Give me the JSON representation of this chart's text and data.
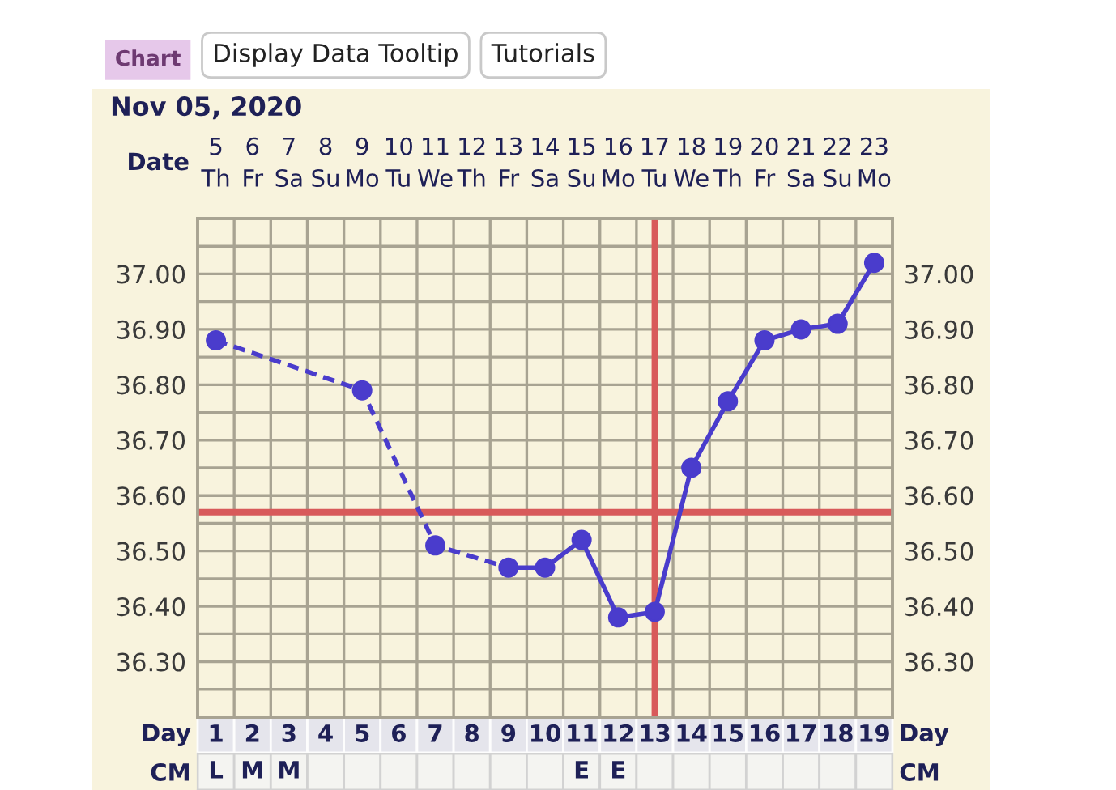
{
  "chart_data": [
    {
      "type": "line",
      "title": "Nov 05, 2020",
      "xlabel": "Day",
      "x2label": "Date",
      "x": [
        1,
        2,
        3,
        4,
        5,
        6,
        7,
        8,
        9,
        10,
        11,
        12,
        13,
        14,
        15,
        16,
        17,
        18,
        19
      ],
      "series": [
        {
          "x": [
            1,
            5,
            7,
            9
          ],
          "values": [
            36.88,
            36.79,
            36.51,
            36.47
          ],
          "color": "#4a3ccc",
          "line_style": "dashed",
          "marker": "none"
        },
        {
          "values": [
            36.88,
            null,
            null,
            null,
            36.79,
            null,
            36.51,
            null,
            36.47,
            36.47,
            36.52,
            36.38,
            36.39,
            36.65,
            36.77,
            36.88,
            36.9,
            36.91,
            37.02
          ],
          "color": "#4a3ccc",
          "line_style": "solid",
          "marker": "circle"
        }
      ],
      "xlim": [
        0.5,
        19.5
      ],
      "xticks": [
        1,
        {
          "value": 1.5,
          "label": null
        },
        2,
        {
          "value": 2.5,
          "label": null
        },
        3,
        {
          "value": 3.5,
          "label": null
        },
        4,
        {
          "value": 4.5,
          "label": null
        },
        5,
        {
          "value": 5.5,
          "label": null
        },
        6,
        {
          "value": 6.5,
          "label": null
        },
        7,
        {
          "value": 7.5,
          "label": null
        },
        8,
        {
          "value": 8.5,
          "label": null
        },
        9,
        {
          "value": 9.5,
          "label": null
        },
        10,
        {
          "value": 10.5,
          "label": null
        },
        11,
        {
          "value": 11.5,
          "label": null
        },
        12,
        {
          "value": 12.5,
          "label": null
        },
        13,
        {
          "value": 13.5,
          "label": null
        },
        14,
        {
          "value": 14.5,
          "label": null
        },
        15,
        {
          "value": 15.5,
          "label": null
        },
        16,
        {
          "value": 16.5,
          "label": null
        },
        17,
        {
          "value": 17.5,
          "label": null
        },
        18,
        {
          "value": 18.5,
          "label": null
        },
        19
      ],
      "x2lim": [
        "2020-11-04T12:00",
        "2020-11-23T12:00"
      ],
      "x2ticks": [
        {
          "value": "2020-11-05",
          "label": "5\nTh"
        },
        {
          "value": "2020-11-06",
          "label": "6\nFr"
        },
        {
          "value": "2020-11-07",
          "label": "7\nSa"
        },
        {
          "value": "2020-11-08",
          "label": "8\nSu"
        },
        {
          "value": "2020-11-09",
          "label": "9\nMo"
        },
        {
          "value": "2020-11-10",
          "label": "10\nTu"
        },
        {
          "value": "2020-11-11",
          "label": "11\nWe"
        },
        {
          "value": "2020-11-12",
          "label": "12\nTh"
        },
        {
          "value": "2020-11-13",
          "label": "13\nFr"
        },
        {
          "value": "2020-11-14",
          "label": "14\nSa"
        },
        {
          "value": "2020-11-15",
          "label": "15\nSu"
        },
        {
          "value": "2020-11-16",
          "label": "16\nMo"
        },
        {
          "value": "2020-11-17",
          "label": "17\nTu"
        },
        {
          "value": "2020-11-18",
          "label": "18\nWe"
        },
        {
          "value": "2020-11-19",
          "label": "19\nTh"
        },
        {
          "value": "2020-11-20",
          "label": "20\nFr"
        },
        {
          "value": "2020-11-21",
          "label": "21\nSa"
        },
        {
          "value": "2020-11-22",
          "label": "22\nSu"
        },
        {
          "value": "2020-11-23",
          "label": "23\nMo"
        }
      ],
      "ylim": [
        36.2,
        37.1
      ],
      "yticks": [
        {
          "value": 36.25,
          "label": null
        },
        {
          "value": 36.3,
          "label": "36.30"
        },
        {
          "value": 36.35,
          "label": null
        },
        {
          "value": 36.4,
          "label": "36.40"
        },
        {
          "value": 36.45,
          "label": null
        },
        {
          "value": 36.5,
          "label": "36.50"
        },
        {
          "value": 36.55,
          "label": null
        },
        {
          "value": 36.6,
          "label": "36.60"
        },
        {
          "value": 36.65,
          "label": null
        },
        {
          "value": 36.7,
          "label": "36.70"
        },
        {
          "value": 36.75,
          "label": null
        },
        {
          "value": 36.8,
          "label": "36.80"
        },
        {
          "value": 36.85,
          "label": null
        },
        {
          "value": 36.9,
          "label": "36.90"
        },
        {
          "value": 36.95,
          "label": null
        },
        {
          "value": 37.0,
          "label": "37.00"
        },
        {
          "value": 37.05,
          "label": null
        }
      ],
      "y2lim": [
        36.2,
        37.1
      ],
      "y2ticks": [
        {
          "value": 36.25,
          "label": null
        },
        {
          "value": 36.3,
          "label": "36.30"
        },
        {
          "value": 36.35,
          "label": null
        },
        {
          "value": 36.4,
          "label": "36.40"
        },
        {
          "value": 36.45,
          "label": null
        },
        {
          "value": 36.5,
          "label": "36.50"
        },
        {
          "value": 36.55,
          "label": null
        },
        {
          "value": 36.6,
          "label": "36.60"
        },
        {
          "value": 36.65,
          "label": null
        },
        {
          "value": 36.7,
          "label": "36.70"
        },
        {
          "value": 36.75,
          "label": null
        },
        {
          "value": 36.8,
          "label": "36.80"
        },
        {
          "value": 36.85,
          "label": null
        },
        {
          "value": 36.9,
          "label": "36.90"
        },
        {
          "value": 36.95,
          "label": null
        },
        {
          "value": 37.0,
          "label": "37.00"
        },
        {
          "value": 37.05,
          "label": null
        }
      ],
      "ref_lines": [
        {
          "axis": "y",
          "value": 36.57,
          "color": "#d85a5a"
        },
        {
          "axis": "x",
          "value": 13,
          "color": "#d85a5a"
        }
      ],
      "grid": true,
      "annotations": [
        "Chart",
        "Display Data Tooltip",
        "Tutorials"
      ]
    },
    {
      "type": "heatmap",
      "categories": [
        "1",
        "2",
        "3",
        "4",
        "5",
        "6",
        "7",
        "8",
        "9",
        "10",
        "11",
        "12",
        "13",
        "14",
        "15",
        "16",
        "17",
        "18",
        "19"
      ],
      "y_categories": [
        "CM"
      ],
      "y2_categories": [
        "CM"
      ],
      "cells": [
        [
          null,
          null,
          null,
          null,
          null,
          null,
          null,
          null,
          null,
          null,
          null,
          null,
          null,
          null,
          null,
          null,
          null,
          null,
          null
        ]
      ],
      "cell_labels": [
        [
          "L",
          "M",
          "M",
          null,
          null,
          null,
          null,
          null,
          null,
          null,
          "E",
          "E",
          null,
          null,
          null,
          null,
          null,
          null,
          null
        ]
      ],
      "tick_labels": "y"
    }
  ]
}
